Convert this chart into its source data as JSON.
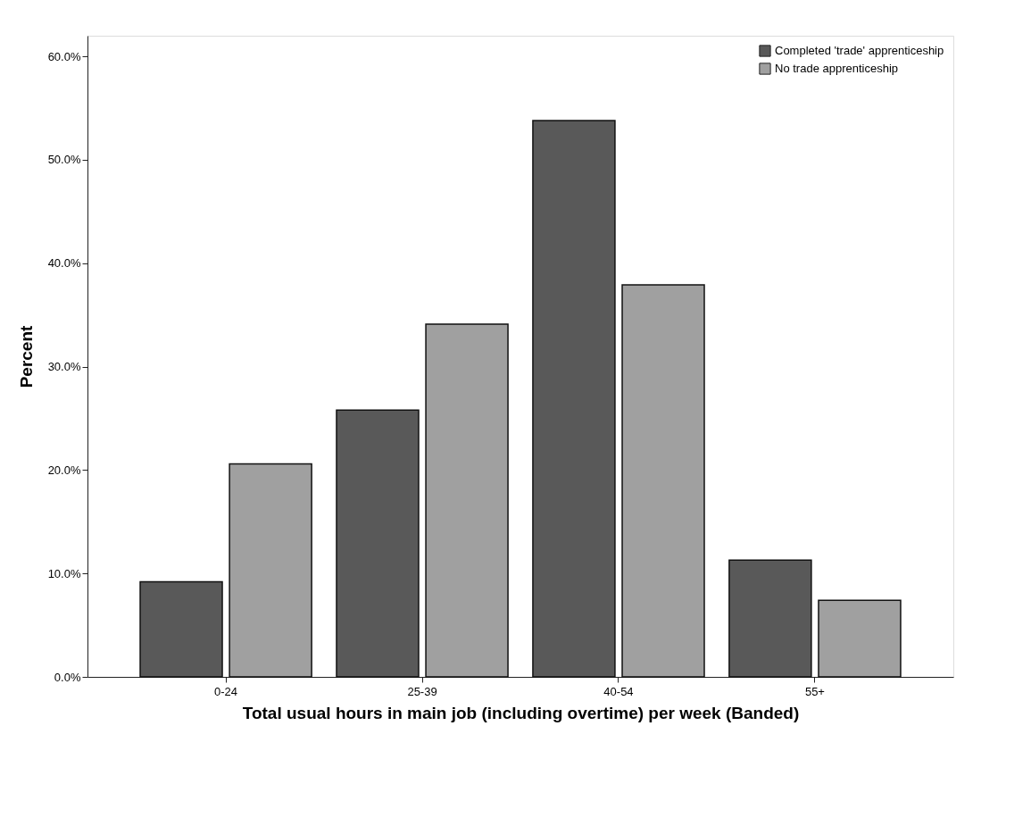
{
  "chart_data": {
    "type": "bar",
    "xlabel": "Total usual hours in main job (including overtime) per week  (Banded)",
    "ylabel": "Percent",
    "categories": [
      "0-24",
      "25-39",
      "40-54",
      "55+"
    ],
    "series": [
      {
        "name": "Completed 'trade' apprenticeship",
        "color": "#595959",
        "values": [
          9.2,
          25.8,
          53.8,
          11.3
        ]
      },
      {
        "name": "No trade apprenticeship",
        "color": "#a0a0a0",
        "values": [
          20.6,
          34.1,
          37.9,
          7.4
        ]
      }
    ],
    "ylim": [
      0,
      62
    ],
    "yticks": [
      {
        "value": 0,
        "label": "0.0%"
      },
      {
        "value": 10,
        "label": "10.0%"
      },
      {
        "value": 20,
        "label": "20.0%"
      },
      {
        "value": 30,
        "label": "30.0%"
      },
      {
        "value": 40,
        "label": "40.0%"
      },
      {
        "value": 50,
        "label": "50.0%"
      },
      {
        "value": 60,
        "label": "60.0%"
      }
    ],
    "grid": false,
    "legend": "top right"
  }
}
